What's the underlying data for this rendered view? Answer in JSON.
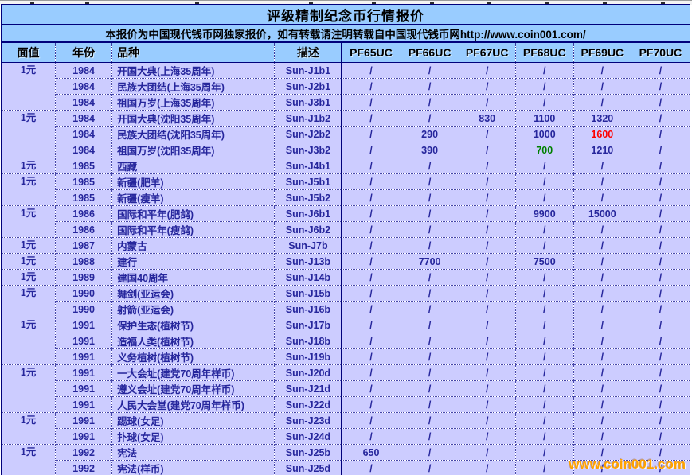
{
  "title": "评级精制纪念币行情报价",
  "subtitle": "本报价为中国现代钱币网独家报价，如有转载请注明转载自中国现代钱币网http://www.coin001.com/",
  "watermark": "www.coin001.com",
  "colors": {
    "banner_bg": "#99CCFF",
    "cell_bg": "#CCCCFF",
    "border_navy": "#00007B",
    "text_navy": "#26269C",
    "highlight_red": "#FF0000",
    "highlight_green": "#008000",
    "watermark_orange": "#FFA200"
  },
  "table": {
    "columns": [
      {
        "key": "face-value",
        "label": "面值"
      },
      {
        "key": "year",
        "label": "年份"
      },
      {
        "key": "variety",
        "label": "品种"
      },
      {
        "key": "description",
        "label": "描述"
      },
      {
        "key": "pf65uc",
        "label": "PF65UC"
      },
      {
        "key": "pf66uc",
        "label": "PF66UC"
      },
      {
        "key": "pf67uc",
        "label": "PF67UC"
      },
      {
        "key": "pf68uc",
        "label": "PF68UC"
      },
      {
        "key": "pf69uc",
        "label": "PF69UC"
      },
      {
        "key": "pf70uc",
        "label": "PF70UC"
      }
    ],
    "rows": [
      {
        "face": "1元",
        "face_span": 3,
        "year": "1984",
        "name": "开国大典(上海35周年)",
        "code": "Sun-J1b1",
        "values": [
          "/",
          "/",
          "/",
          "/",
          "/",
          "/"
        ]
      },
      {
        "year": "1984",
        "name": "民族大团结(上海35周年)",
        "code": "Sun-J2b1",
        "values": [
          "/",
          "/",
          "/",
          "/",
          "/",
          "/"
        ]
      },
      {
        "year": "1984",
        "name": "祖国万岁(上海35周年)",
        "code": "Sun-J3b1",
        "values": [
          "/",
          "/",
          "/",
          "/",
          "/",
          "/"
        ]
      },
      {
        "face": "1元",
        "face_span": 3,
        "year": "1984",
        "name": "开国大典(沈阳35周年)",
        "code": "Sun-J1b2",
        "values": [
          "/",
          "/",
          "830",
          "1100",
          "1320",
          "/"
        ]
      },
      {
        "year": "1984",
        "name": "民族大团结(沈阳35周年)",
        "code": "Sun-J2b2",
        "values": [
          "/",
          "290",
          "/",
          "1000",
          "1600",
          "/"
        ],
        "value_colors": {
          "4": "#FF0000"
        }
      },
      {
        "year": "1984",
        "name": "祖国万岁(沈阳35周年)",
        "code": "Sun-J3b2",
        "values": [
          "/",
          "390",
          "/",
          "700",
          "1210",
          "/"
        ],
        "value_colors": {
          "3": "#008000"
        }
      },
      {
        "face": "1元",
        "face_span": 1,
        "year": "1985",
        "name": "西藏",
        "code": "Sun-J4b1",
        "values": [
          "/",
          "/",
          "/",
          "/",
          "/",
          "/"
        ]
      },
      {
        "face": "1元",
        "face_span": 2,
        "year": "1985",
        "name": "新疆(肥羊)",
        "code": "Sun-J5b1",
        "values": [
          "/",
          "/",
          "/",
          "/",
          "/",
          "/"
        ]
      },
      {
        "year": "1985",
        "name": "新疆(瘦羊)",
        "code": "Sun-J5b2",
        "values": [
          "/",
          "/",
          "/",
          "/",
          "/",
          "/"
        ]
      },
      {
        "face": "1元",
        "face_span": 2,
        "year": "1986",
        "name": "国际和平年(肥鸽)",
        "code": "Sun-J6b1",
        "values": [
          "/",
          "/",
          "/",
          "9900",
          "15000",
          "/"
        ]
      },
      {
        "year": "1986",
        "name": "国际和平年(瘦鸽)",
        "code": "Sun-J6b2",
        "values": [
          "/",
          "/",
          "/",
          "/",
          "/",
          "/"
        ]
      },
      {
        "face": "1元",
        "face_span": 1,
        "year": "1987",
        "name": "内蒙古",
        "code": "Sun-J7b",
        "values": [
          "/",
          "/",
          "/",
          "/",
          "/",
          "/"
        ]
      },
      {
        "face": "1元",
        "face_span": 1,
        "year": "1988",
        "name": "建行",
        "code": "Sun-J13b",
        "values": [
          "/",
          "7700",
          "/",
          "7500",
          "/",
          "/"
        ]
      },
      {
        "face": "1元",
        "face_span": 1,
        "year": "1989",
        "name": "建国40周年",
        "code": "Sun-J14b",
        "values": [
          "/",
          "/",
          "/",
          "/",
          "/",
          "/"
        ]
      },
      {
        "face": "1元",
        "face_span": 2,
        "year": "1990",
        "name": "舞剑(亚运会)",
        "code": "Sun-J15b",
        "values": [
          "/",
          "/",
          "/",
          "/",
          "/",
          "/"
        ]
      },
      {
        "year": "1990",
        "name": "射箭(亚运会)",
        "code": "Sun-J16b",
        "values": [
          "/",
          "/",
          "/",
          "/",
          "/",
          "/"
        ]
      },
      {
        "face": "1元",
        "face_span": 3,
        "year": "1991",
        "name": "保护生态(植树节)",
        "code": "Sun-J17b",
        "values": [
          "/",
          "/",
          "/",
          "/",
          "/",
          "/"
        ]
      },
      {
        "year": "1991",
        "name": "造福人类(植树节)",
        "code": "Sun-J18b",
        "values": [
          "/",
          "/",
          "/",
          "/",
          "/",
          "/"
        ]
      },
      {
        "year": "1991",
        "name": "义务植树(植树节)",
        "code": "Sun-J19b",
        "values": [
          "/",
          "/",
          "/",
          "/",
          "/",
          "/"
        ]
      },
      {
        "face": "1元",
        "face_span": 3,
        "year": "1991",
        "name": "一大会址(建党70周年样币)",
        "code": "Sun-J20d",
        "values": [
          "/",
          "/",
          "/",
          "/",
          "/",
          "/"
        ]
      },
      {
        "year": "1991",
        "name": "遵义会址(建党70周年样币)",
        "code": "Sun-J21d",
        "values": [
          "/",
          "/",
          "/",
          "/",
          "/",
          "/"
        ]
      },
      {
        "year": "1991",
        "name": "人民大会堂(建党70周年样币)",
        "code": "Sun-J22d",
        "values": [
          "/",
          "/",
          "/",
          "/",
          "/",
          "/"
        ]
      },
      {
        "face": "1元",
        "face_span": 2,
        "year": "1991",
        "name": "踢球(女足)",
        "code": "Sun-J23d",
        "values": [
          "/",
          "/",
          "/",
          "/",
          "/",
          "/"
        ]
      },
      {
        "year": "1991",
        "name": "扑球(女足)",
        "code": "Sun-J24d",
        "values": [
          "/",
          "/",
          "/",
          "/",
          "/",
          "/"
        ]
      },
      {
        "face": "1元",
        "face_span": 2,
        "year": "1992",
        "name": "宪法",
        "code": "Sun-J25b",
        "values": [
          "650",
          "/",
          "/",
          "/",
          "/",
          "/"
        ]
      },
      {
        "year": "1992",
        "name": "宪法(样币)",
        "code": "Sun-J25d",
        "values": [
          "/",
          "/",
          "/",
          "/",
          "/",
          "/"
        ]
      }
    ]
  }
}
